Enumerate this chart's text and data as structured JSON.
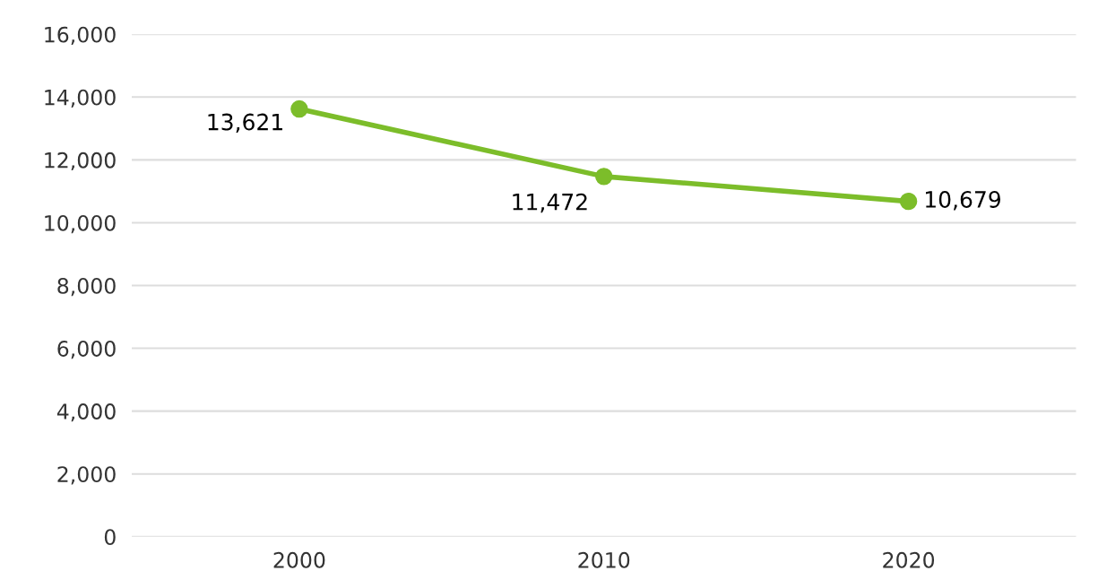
{
  "chart_data": {
    "type": "line",
    "categories": [
      "2000",
      "2010",
      "2020"
    ],
    "series": [
      {
        "color": "#7cbd2a",
        "values": [
          13621,
          11472,
          10679
        ],
        "value_labels": [
          "13,621",
          "11,472",
          "10,679"
        ]
      }
    ],
    "ylim": [
      0,
      16000
    ],
    "yticks": [
      {
        "value": 0,
        "label": "0"
      },
      {
        "value": 2000,
        "label": "2,000"
      },
      {
        "value": 4000,
        "label": "4,000"
      },
      {
        "value": 6000,
        "label": "6,000"
      },
      {
        "value": 8000,
        "label": "8,000"
      },
      {
        "value": 10000,
        "label": "10,000"
      },
      {
        "value": 12000,
        "label": "12,000"
      },
      {
        "value": 14000,
        "label": "14,000"
      },
      {
        "value": 16000,
        "label": "16,000"
      }
    ],
    "grid": "y",
    "marker": "circle",
    "line_style": "solid",
    "legend": false
  }
}
